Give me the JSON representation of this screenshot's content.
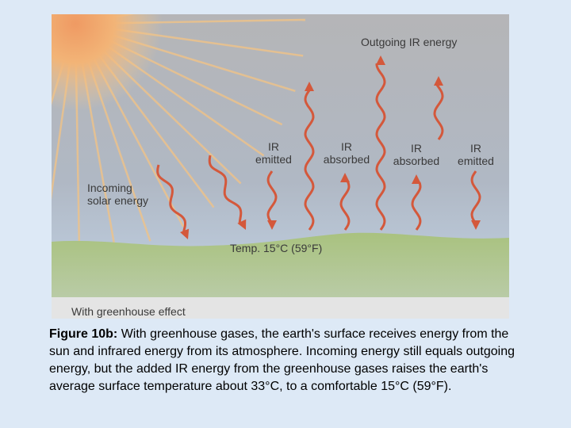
{
  "diagram": {
    "labels": [
      {
        "lines": [
          "Outgoing IR energy"
        ]
      },
      {
        "lines": [
          "IR",
          "emitted"
        ]
      },
      {
        "lines": [
          "IR",
          "absorbed"
        ]
      },
      {
        "lines": [
          "IR",
          "absorbed"
        ]
      },
      {
        "lines": [
          "IR",
          "emitted"
        ]
      },
      {
        "lines": [
          "Incoming",
          "solar energy"
        ]
      },
      {
        "lines": [
          "Temp. 15°C (59°F)"
        ]
      }
    ],
    "footer": "With greenhouse effect"
  },
  "caption": {
    "label": "Figure 10b:",
    "text": "With greenhouse gases, the earth's surface receives energy from the sun and infrared energy from its atmosphere. Incoming energy still equals outgoing energy, but the added IR energy from the greenhouse gases raises the earth's average surface temperature about 33°C, to a comfortable 15°C (59°F)."
  }
}
